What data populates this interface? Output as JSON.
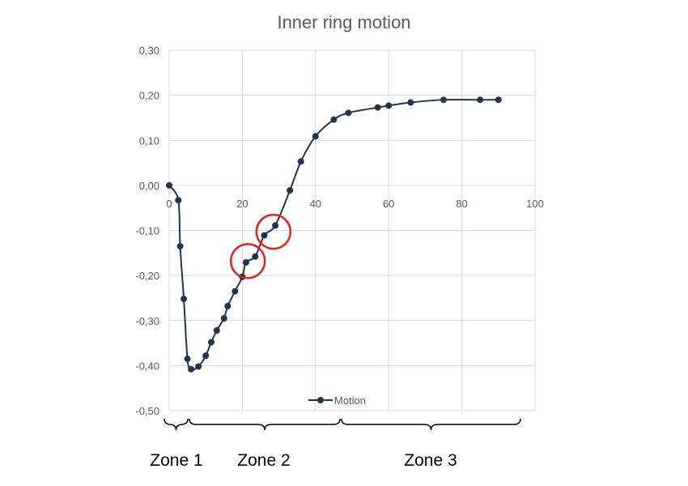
{
  "chart_data": {
    "type": "line",
    "title": "Inner ring motion",
    "xlabel": "",
    "ylabel": "",
    "xlim": [
      0,
      100
    ],
    "ylim": [
      -0.5,
      0.3
    ],
    "x_ticks": [
      0,
      20,
      40,
      60,
      80,
      100
    ],
    "y_ticks": [
      0.3,
      0.2,
      0.1,
      0.0,
      -0.1,
      -0.2,
      -0.3,
      -0.4,
      -0.5
    ],
    "x_tick_labels": [
      "0",
      "20",
      "40",
      "60",
      "80",
      "100"
    ],
    "y_tick_labels": [
      "0,30",
      "0,20",
      "0,10",
      "0,00",
      "-0,10",
      "-0,20",
      "-0,30",
      "-0,40",
      "-0,50"
    ],
    "grid": true,
    "legend_position": "bottom-center",
    "series": [
      {
        "name": "Motion",
        "color": "#243447",
        "x": [
          0,
          2.5,
          3,
          4,
          5,
          6,
          8,
          10,
          11.5,
          13,
          15,
          16,
          18,
          20,
          21,
          23.5,
          26,
          29,
          33,
          36,
          40,
          45,
          49,
          57,
          60,
          66,
          75,
          85,
          90
        ],
        "y": [
          0.0,
          -0.033,
          -0.135,
          -0.252,
          -0.385,
          -0.408,
          -0.402,
          -0.378,
          -0.348,
          -0.322,
          -0.295,
          -0.268,
          -0.235,
          -0.203,
          -0.171,
          -0.158,
          -0.111,
          -0.089,
          -0.011,
          0.053,
          0.109,
          0.146,
          0.161,
          0.173,
          0.177,
          0.184,
          0.19,
          0.19,
          0.19
        ]
      }
    ],
    "annotations": {
      "circles": [
        {
          "x": 21.5,
          "y": -0.168,
          "color": "#e02020"
        },
        {
          "x": 28.5,
          "y": -0.103,
          "color": "#e02020"
        }
      ],
      "zones": [
        {
          "label": "Zone 1"
        },
        {
          "label": "Zone 2"
        },
        {
          "label": "Zone 3"
        }
      ]
    }
  }
}
